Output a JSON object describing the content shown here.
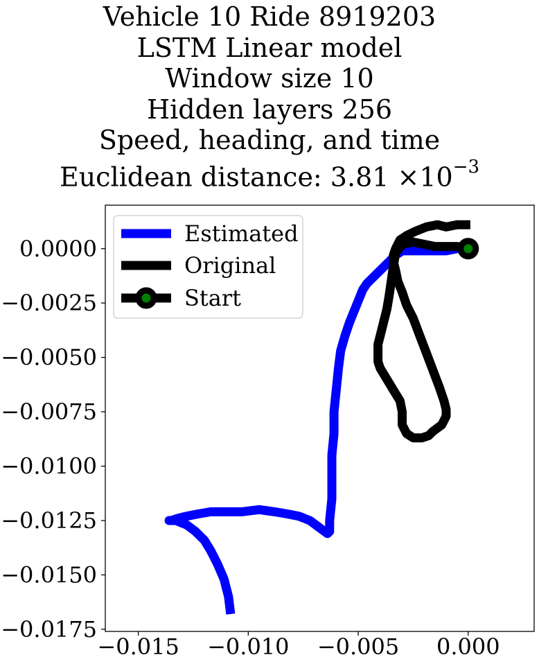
{
  "chart_data": {
    "type": "line",
    "title_lines": [
      "Vehicle 10 Ride 8919203",
      "LSTM Linear model",
      "Window size 10",
      "Hidden layers 256",
      "Speed, heading, and time"
    ],
    "title_metric_prefix": "Euclidean distance: 3.81",
    "title_metric_times": "×",
    "title_metric_base": "10",
    "title_metric_exponent": "−3",
    "xlim": [
      -0.0165,
      0.003
    ],
    "ylim": [
      -0.0176,
      0.002
    ],
    "x_ticks": [
      -0.015,
      -0.01,
      -0.005,
      0.0
    ],
    "x_tick_labels": [
      "−0.015",
      "−0.010",
      "−0.005",
      "0.000"
    ],
    "y_ticks": [
      0.0,
      -0.0025,
      -0.005,
      -0.0075,
      -0.01,
      -0.0125,
      -0.015,
      -0.0175
    ],
    "y_tick_labels": [
      "0.0000",
      "−0.0025",
      "−0.0050",
      "−0.0075",
      "−0.0100",
      "−0.0125",
      "−0.0150",
      "−0.0175"
    ],
    "grid": false,
    "legend_position": "top-left",
    "series": [
      {
        "name": "Estimated",
        "color": "#0000ff",
        "x": [
          0.0,
          -0.0005,
          -0.001,
          -0.0015,
          -0.002,
          -0.0025,
          -0.003,
          -0.0033,
          -0.0036,
          -0.004,
          -0.0043,
          -0.0046,
          -0.0048,
          -0.005,
          -0.0052,
          -0.0054,
          -0.0056,
          -0.0058,
          -0.0059,
          -0.006,
          -0.0061,
          -0.0061,
          -0.0062,
          -0.0062,
          -0.0062,
          -0.0063,
          -0.0063,
          -0.0064,
          -0.0068,
          -0.0072,
          -0.0077,
          -0.0082,
          -0.0088,
          -0.0095,
          -0.0103,
          -0.011,
          -0.0117,
          -0.0123,
          -0.0128,
          -0.0132,
          -0.0135,
          -0.0136,
          -0.0133,
          -0.0128,
          -0.0124,
          -0.012,
          -0.0117,
          -0.0114,
          -0.0111,
          -0.0109,
          -0.0108
        ],
        "y": [
          0.0,
          0.0,
          -0.0001,
          -0.0001,
          -0.0001,
          -0.0001,
          -0.0001,
          -0.0003,
          -0.0006,
          -0.001,
          -0.0013,
          -0.0016,
          -0.0019,
          -0.0024,
          -0.0029,
          -0.0034,
          -0.004,
          -0.0047,
          -0.0055,
          -0.0065,
          -0.0075,
          -0.0085,
          -0.0095,
          -0.0105,
          -0.0115,
          -0.0125,
          -0.013,
          -0.0131,
          -0.0128,
          -0.0125,
          -0.0123,
          -0.0122,
          -0.0121,
          -0.012,
          -0.0121,
          -0.0121,
          -0.0121,
          -0.0122,
          -0.0123,
          -0.0124,
          -0.0125,
          -0.0125,
          -0.0125,
          -0.0127,
          -0.013,
          -0.0134,
          -0.0139,
          -0.0145,
          -0.0152,
          -0.016,
          -0.0168
        ]
      },
      {
        "name": "Original",
        "color": "#000000",
        "x": [
          0.0,
          0.0,
          -0.0005,
          -0.001,
          -0.0015,
          -0.002,
          -0.0025,
          -0.003,
          -0.0033,
          -0.0034,
          -0.0035,
          -0.0036,
          -0.0037,
          -0.0038,
          -0.0039,
          -0.004,
          -0.0041,
          -0.0041,
          -0.0041,
          -0.004,
          -0.0037,
          -0.0034,
          -0.0031,
          -0.003,
          -0.003,
          -0.0028,
          -0.0025,
          -0.0021,
          -0.0018,
          -0.0016,
          -0.0012,
          -0.001,
          -0.001,
          -0.0011,
          -0.0013,
          -0.0016,
          -0.0019,
          -0.0022,
          -0.0025,
          -0.0028,
          -0.003,
          -0.0032,
          -0.0033,
          -0.0034,
          -0.0034,
          -0.0033,
          -0.0031,
          -0.0028,
          -0.0024,
          -0.0019,
          -0.0014,
          -0.001,
          -0.0005,
          0.0001
        ],
        "y": [
          0.0,
          0.0,
          0.0001,
          0.0001,
          0.0001,
          0.0002,
          0.0003,
          0.0002,
          -0.0002,
          -0.0008,
          -0.0015,
          -0.0022,
          -0.0028,
          -0.0032,
          -0.0036,
          -0.004,
          -0.0044,
          -0.0048,
          -0.0052,
          -0.0055,
          -0.006,
          -0.0065,
          -0.007,
          -0.0075,
          -0.0081,
          -0.0085,
          -0.0087,
          -0.0087,
          -0.0086,
          -0.0084,
          -0.0081,
          -0.0077,
          -0.0074,
          -0.007,
          -0.0064,
          -0.0056,
          -0.0048,
          -0.004,
          -0.0032,
          -0.0026,
          -0.002,
          -0.0015,
          -0.001,
          -0.0006,
          -0.0003,
          0.0,
          0.0004,
          0.0006,
          0.0008,
          0.001,
          0.0011,
          0.001,
          0.0011,
          0.0011
        ]
      },
      {
        "name": "Start",
        "color": "#008000",
        "marker_edge_color": "#000000",
        "x": [
          0.0
        ],
        "y": [
          0.0
        ]
      }
    ]
  }
}
